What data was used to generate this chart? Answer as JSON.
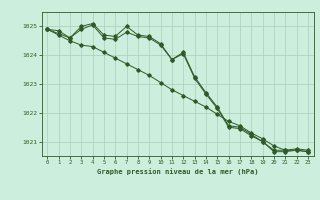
{
  "title": "Graphe pression niveau de la mer (hPa)",
  "background_color": "#cceedd",
  "grid_color": "#aaccbb",
  "line_color": "#2d5a27",
  "ylim": [
    1020.5,
    1025.5
  ],
  "yticks": [
    1021,
    1022,
    1023,
    1024,
    1025
  ],
  "xlim": [
    -0.5,
    23.5
  ],
  "xticks": [
    0,
    1,
    2,
    3,
    4,
    5,
    6,
    7,
    8,
    9,
    10,
    11,
    12,
    13,
    14,
    15,
    16,
    17,
    18,
    19,
    20,
    21,
    22,
    23
  ],
  "series": [
    [
      1024.9,
      1024.85,
      1024.6,
      1025.0,
      1025.1,
      1024.7,
      1024.65,
      1025.0,
      1024.7,
      1024.65,
      1024.4,
      1023.85,
      1024.1,
      1023.25,
      1022.7,
      1022.2,
      1021.55,
      1021.5,
      1021.25,
      1021.0,
      1020.7,
      1020.7,
      1020.75,
      1020.7
    ],
    [
      1024.9,
      1024.7,
      1024.5,
      1024.35,
      1024.3,
      1024.1,
      1023.9,
      1023.7,
      1023.5,
      1023.3,
      1023.05,
      1022.8,
      1022.6,
      1022.4,
      1022.2,
      1021.95,
      1021.7,
      1021.55,
      1021.3,
      1021.1,
      1020.85,
      1020.7,
      1020.7,
      1020.65
    ],
    [
      1024.9,
      1024.75,
      1024.6,
      1024.9,
      1025.05,
      1024.6,
      1024.55,
      1024.8,
      1024.65,
      1024.6,
      1024.35,
      1023.85,
      1024.05,
      1023.2,
      1022.65,
      1022.15,
      1021.5,
      1021.45,
      1021.2,
      1021.0,
      1020.65,
      1020.65,
      1020.7,
      1020.65
    ]
  ]
}
